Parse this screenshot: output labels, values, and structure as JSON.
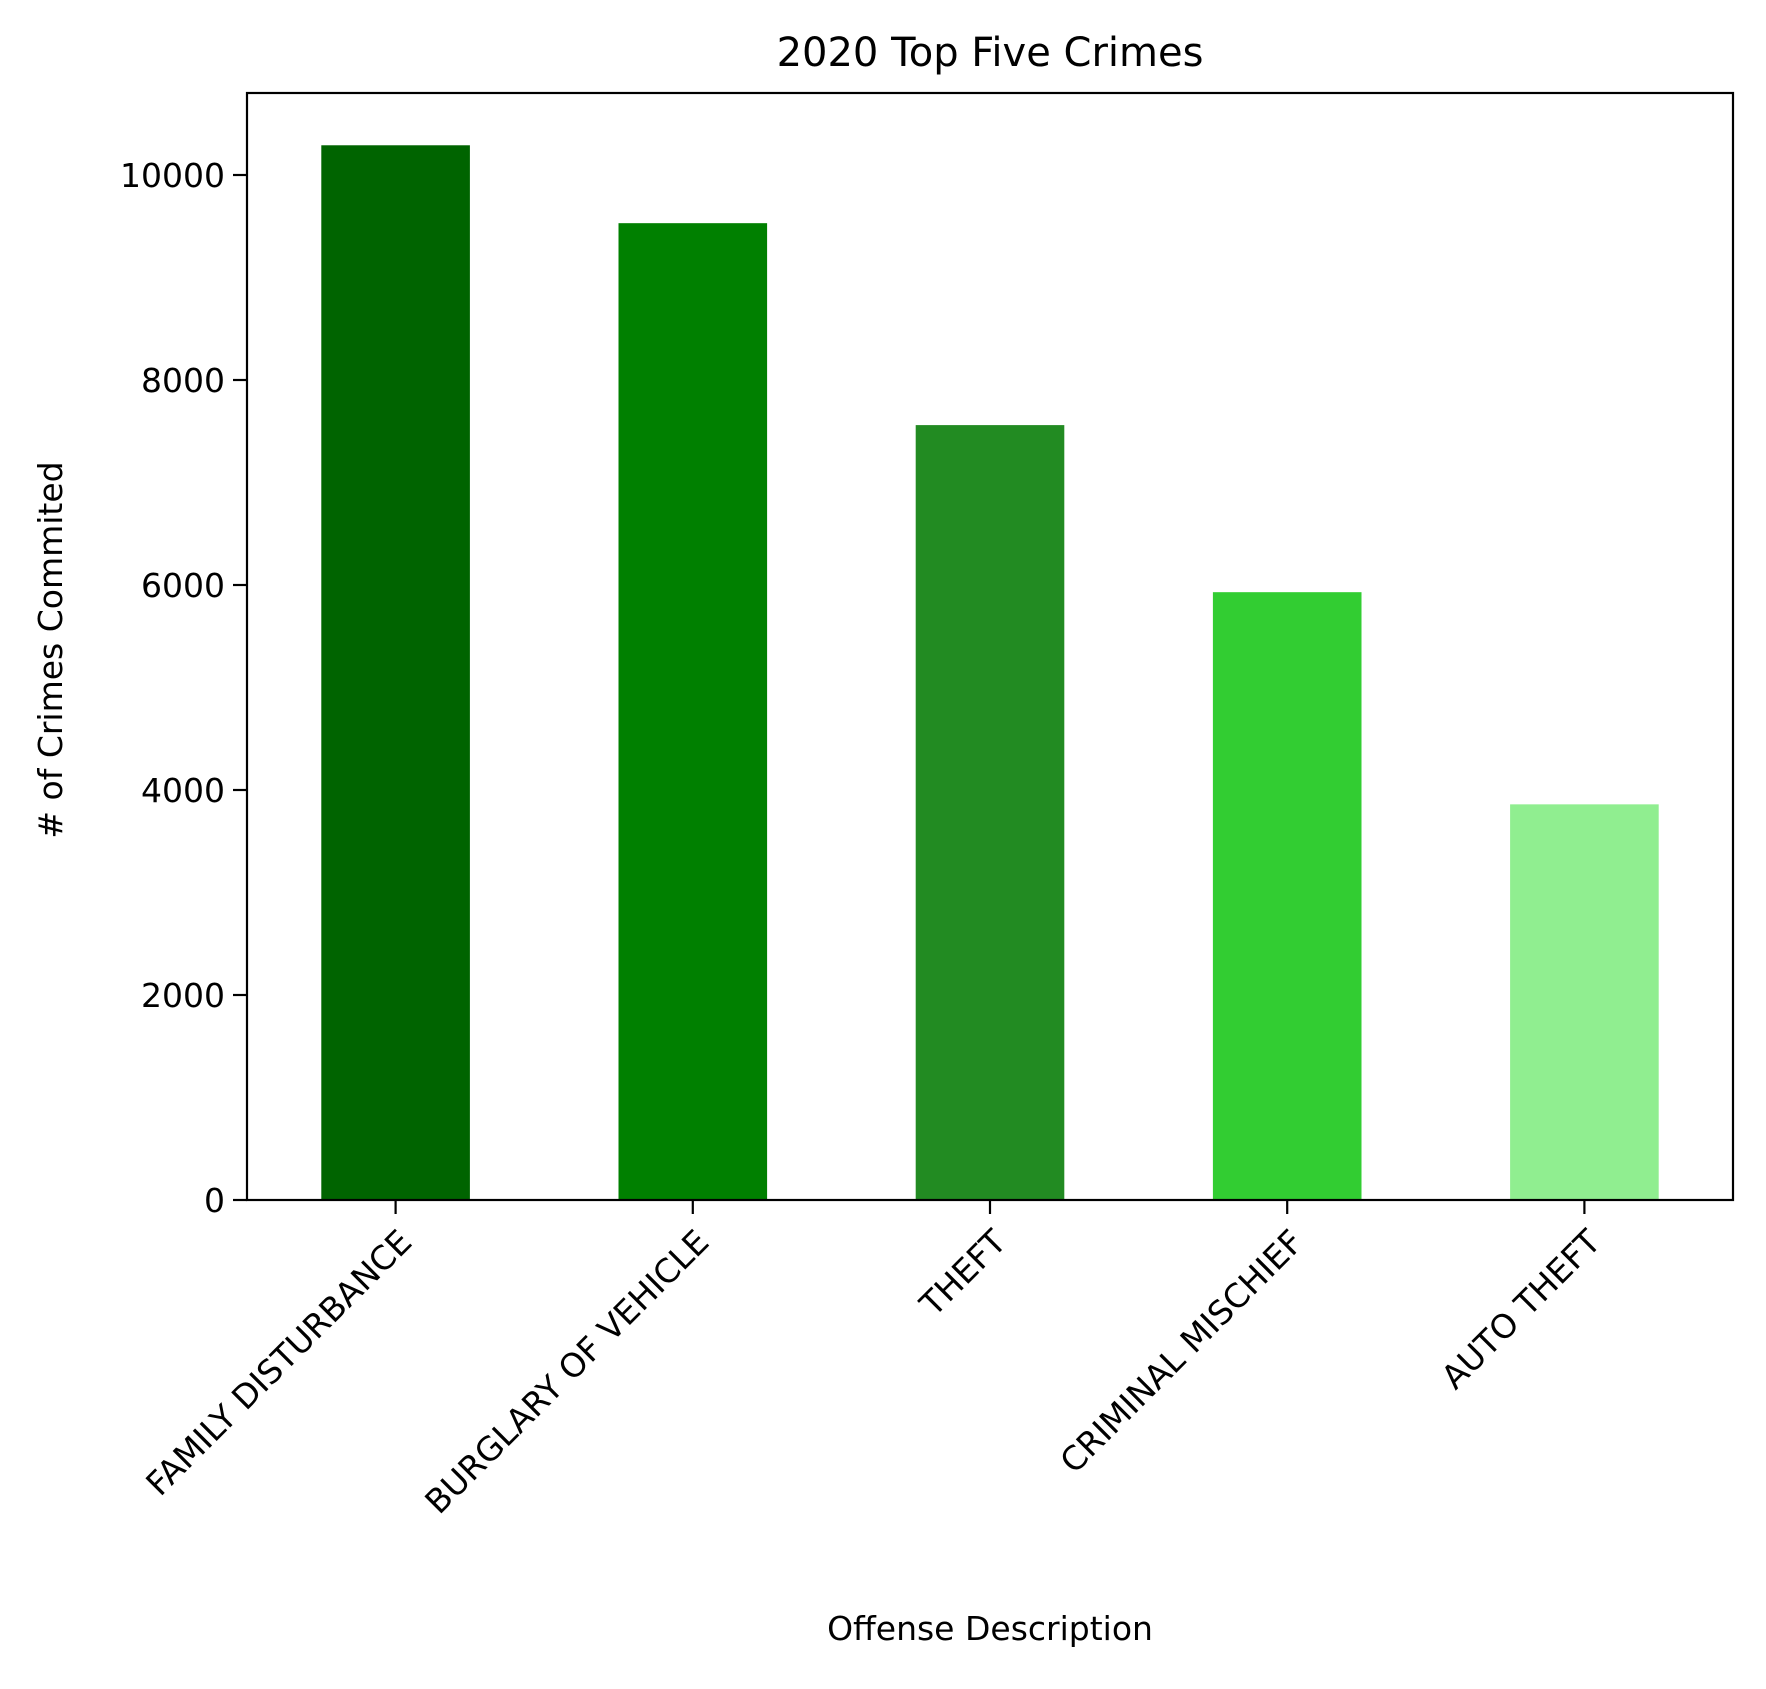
{
  "chart_data": {
    "type": "bar",
    "title": "2020 Top Five Crimes",
    "xlabel": "Offense Description",
    "ylabel": "# of Crimes Commited",
    "categories": [
      "FAMILY DISTURBANCE",
      "BURGLARY OF VEHICLE",
      "THEFT",
      "CRIMINAL MISCHIEF",
      "AUTO THEFT"
    ],
    "values": [
      10290,
      9530,
      7560,
      5930,
      3860
    ],
    "colors": [
      "#006400",
      "#008000",
      "#228B22",
      "#32CD32",
      "#90EE90"
    ],
    "ylim": [
      0,
      10800
    ],
    "yticks": [
      0,
      2000,
      4000,
      6000,
      8000,
      10000
    ],
    "grid": false,
    "legend": "none"
  }
}
